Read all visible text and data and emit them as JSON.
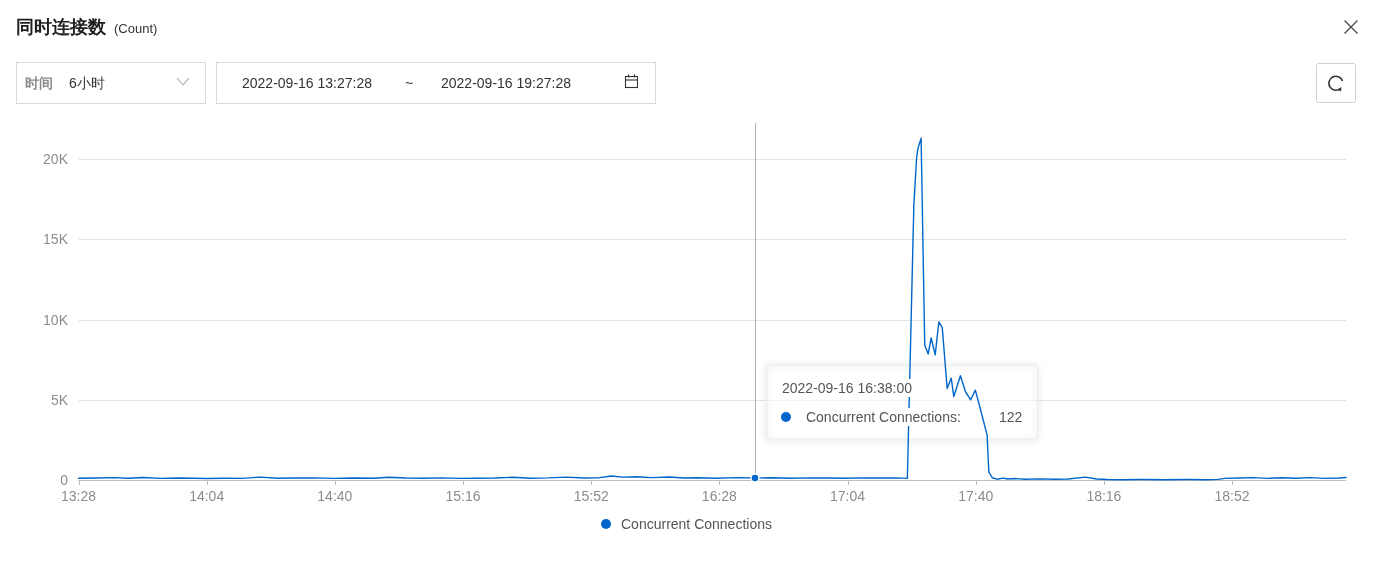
{
  "chart_data": {
    "type": "line",
    "title": "同时连接数",
    "subtitle": "(Count)",
    "x": [
      13.4667,
      13.55,
      13.6333,
      13.7,
      13.7667,
      13.85,
      13.9333,
      14.0,
      14.0667,
      14.15,
      14.2333,
      14.3167,
      14.4,
      14.4833,
      14.5667,
      14.6667,
      14.75,
      14.85,
      14.9167,
      15.0,
      15.0833,
      15.1667,
      15.25,
      15.3333,
      15.4167,
      15.5,
      15.5833,
      15.6667,
      15.75,
      15.8333,
      15.9,
      15.96,
      16.0167,
      16.0833,
      16.15,
      16.2333,
      16.3,
      16.3667,
      16.45,
      16.55,
      16.6333,
      16.7167,
      16.8,
      16.8833,
      16.9667,
      17.05,
      17.1333,
      17.2167,
      17.3,
      17.3467,
      17.377,
      17.39,
      17.397,
      17.411,
      17.428,
      17.444,
      17.458,
      17.477,
      17.494,
      17.51,
      17.533,
      17.552,
      17.564,
      17.595,
      17.619,
      17.643,
      17.665,
      17.687,
      17.72,
      17.728,
      17.744,
      17.7667,
      17.795,
      17.8167,
      17.85,
      17.9,
      17.9667,
      18.0333,
      18.1,
      18.18,
      18.2333,
      18.2833,
      18.35,
      18.45,
      18.55,
      18.65,
      18.75,
      18.8,
      18.8333,
      18.9,
      18.9667,
      19.0333,
      19.1,
      19.1667,
      19.2333,
      19.3,
      19.3667,
      19.4
    ],
    "series": [
      {
        "name": "Concurrent Connections",
        "color": "#0066cc",
        "values": [
          110,
          120,
          150,
          110,
          160,
          100,
          120,
          110,
          90,
          110,
          100,
          180,
          110,
          120,
          130,
          100,
          120,
          110,
          170,
          120,
          110,
          130,
          100,
          110,
          120,
          170,
          110,
          130,
          180,
          120,
          130,
          250,
          180,
          200,
          150,
          190,
          120,
          140,
          110,
          150,
          122,
          140,
          110,
          130,
          120,
          110,
          130,
          120,
          130,
          100,
          17100,
          20100,
          20700,
          21300,
          8400,
          7850,
          8850,
          7800,
          9850,
          9500,
          5700,
          6350,
          5200,
          6500,
          5500,
          5000,
          5600,
          4500,
          2800,
          500,
          140,
          50,
          120,
          60,
          90,
          50,
          70,
          50,
          60,
          180,
          60,
          30,
          20,
          30,
          20,
          30,
          20,
          40,
          100,
          120,
          150,
          100,
          140,
          110,
          150,
          100,
          120,
          160
        ]
      }
    ],
    "xlim": [
      13.4667,
      19.4
    ],
    "xticks": [
      {
        "value": 13.4667,
        "label": "13:28"
      },
      {
        "value": 14.0667,
        "label": "14:04"
      },
      {
        "value": 14.6667,
        "label": "14:40"
      },
      {
        "value": 15.2667,
        "label": "15:16"
      },
      {
        "value": 15.8667,
        "label": "15:52"
      },
      {
        "value": 16.4667,
        "label": "16:28"
      },
      {
        "value": 17.0667,
        "label": "17:04"
      },
      {
        "value": 17.6667,
        "label": "17:40"
      },
      {
        "value": 18.2667,
        "label": "18:16"
      },
      {
        "value": 18.8667,
        "label": "18:52"
      }
    ],
    "ylim": [
      0,
      22250
    ],
    "yticks": [
      {
        "value": 0,
        "label": "0"
      },
      {
        "value": 5000,
        "label": "5K"
      },
      {
        "value": 10000,
        "label": "10K"
      },
      {
        "value": 15000,
        "label": "15K"
      },
      {
        "value": 20000,
        "label": "20K"
      }
    ],
    "grid": "y",
    "legend": "bottom",
    "line_style": "solid",
    "ref_lines": [
      {
        "axis": "x",
        "value": 16.6333,
        "color": "#b4b4b4"
      }
    ],
    "annotations": [
      "时间",
      "6小时",
      "2022-09-16 13:27:28",
      "~",
      "2022-09-16 19:27:28",
      "2022-09-16 16:38:00",
      "Concurrent Connections:",
      "122"
    ]
  }
}
